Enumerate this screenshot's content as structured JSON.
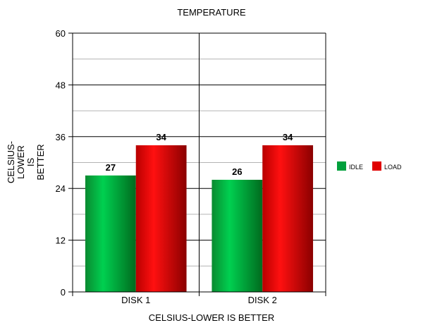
{
  "chart_data": {
    "type": "bar",
    "title": "TEMPERATURE",
    "xlabel": "CELSIUS-LOWER IS BETTER",
    "ylabel_lines": [
      "CELSIUS-",
      "LOWER",
      "IS",
      "BETTER"
    ],
    "categories": [
      "DISK 1",
      "DISK 2"
    ],
    "series": [
      {
        "name": "IDLE",
        "values": [
          27,
          26
        ],
        "color": "#00a03c"
      },
      {
        "name": "LOAD",
        "values": [
          34,
          34
        ],
        "color": "#e00000"
      }
    ],
    "ylim": [
      0,
      60
    ],
    "yticks": [
      0,
      12,
      24,
      36,
      48,
      60
    ],
    "minor_gridlines": true,
    "legend_position": "right"
  }
}
